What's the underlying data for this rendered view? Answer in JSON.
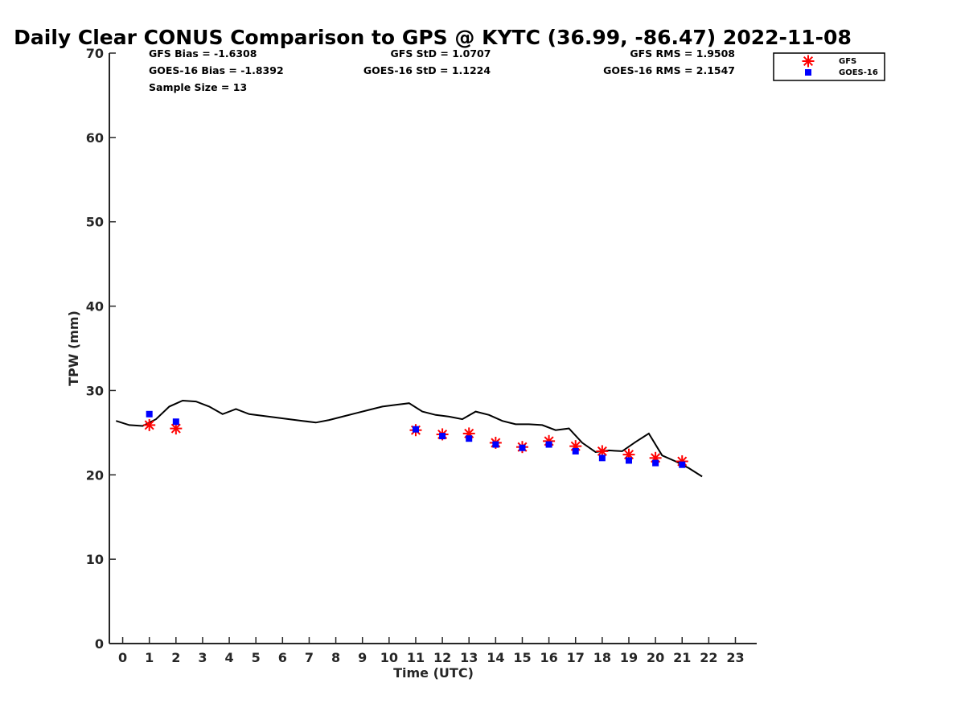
{
  "chart_data": {
    "type": "scatter",
    "title": "Daily Clear CONUS Comparison to GPS @ KYTC (36.99, -86.47) 2022-11-08",
    "xlabel": "Time (UTC)",
    "ylabel": "TPW (mm)",
    "xlim": [
      -0.5,
      23.8
    ],
    "ylim": [
      0,
      70
    ],
    "x_ticks": [
      0,
      1,
      2,
      3,
      4,
      5,
      6,
      7,
      8,
      9,
      10,
      11,
      12,
      13,
      14,
      15,
      16,
      17,
      18,
      19,
      20,
      21,
      22,
      23
    ],
    "y_ticks": [
      0,
      10,
      20,
      30,
      40,
      50,
      60,
      70
    ],
    "grid": false,
    "legend_position": "top-right",
    "stats": {
      "gfs_bias": "GFS Bias = -1.6308",
      "goes_bias": "GOES-16 Bias = -1.8392",
      "sample_size": "Sample Size = 13",
      "gfs_std": "GFS StD = 1.0707",
      "goes_std": "GOES-16 StD = 1.1224",
      "gfs_rms": "GFS RMS = 1.9508",
      "goes_rms": "GOES-16 RMS = 2.1547"
    },
    "series": [
      {
        "name": "GFS",
        "marker": "asterisk",
        "color": "#ff0000",
        "x": [
          1,
          2,
          11,
          12,
          13,
          14,
          15,
          16,
          17,
          18,
          19,
          20,
          21
        ],
        "y": [
          25.9,
          25.5,
          25.3,
          24.8,
          24.9,
          23.8,
          23.3,
          24.0,
          23.4,
          22.8,
          22.4,
          22.0,
          21.6
        ]
      },
      {
        "name": "GOES-16",
        "marker": "square",
        "color": "#0000ff",
        "x": [
          1,
          2,
          11,
          12,
          13,
          14,
          15,
          16,
          17,
          18,
          19,
          20,
          21
        ],
        "y": [
          27.2,
          26.3,
          25.4,
          24.6,
          24.3,
          23.6,
          23.2,
          23.6,
          22.8,
          22.0,
          21.7,
          21.4,
          21.2
        ]
      },
      {
        "marker": "line",
        "color": "#000000",
        "x": [
          -0.25,
          0.25,
          0.75,
          1.25,
          1.75,
          2.25,
          2.75,
          3.25,
          3.75,
          4.25,
          4.75,
          5.25,
          5.75,
          6.25,
          6.75,
          7.25,
          7.75,
          8.25,
          8.75,
          9.25,
          9.75,
          10.25,
          10.75,
          11.25,
          11.75,
          12.25,
          12.75,
          13.25,
          13.75,
          14.25,
          14.75,
          15.25,
          15.75,
          16.25,
          16.75,
          17.25,
          17.75,
          18.25,
          18.75,
          19.25,
          19.75,
          20.25,
          20.75,
          21.25,
          21.75
        ],
        "y": [
          26.4,
          25.9,
          25.8,
          26.6,
          28.1,
          28.8,
          28.7,
          28.1,
          27.2,
          27.8,
          27.2,
          27.0,
          26.8,
          26.6,
          26.4,
          26.2,
          26.5,
          26.9,
          27.3,
          27.7,
          28.1,
          28.3,
          28.5,
          27.5,
          27.1,
          26.9,
          26.6,
          27.5,
          27.1,
          26.4,
          26.0,
          26.0,
          25.9,
          25.3,
          25.5,
          23.8,
          22.7,
          22.9,
          22.8,
          23.9,
          24.9,
          22.3,
          21.6,
          20.8,
          19.8
        ]
      }
    ]
  }
}
